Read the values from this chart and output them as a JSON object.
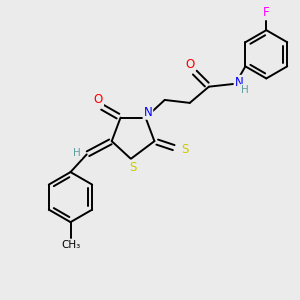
{
  "bg_color": "#ebebeb",
  "atom_colors": {
    "C": "#000000",
    "H": "#5f9ea0",
    "N": "#0000ff",
    "O": "#ff0000",
    "S": "#cccc00",
    "F": "#ff00ff"
  },
  "figsize": [
    3.0,
    3.0
  ],
  "dpi": 100,
  "bond_lw": 1.4,
  "font_size": 8.5
}
